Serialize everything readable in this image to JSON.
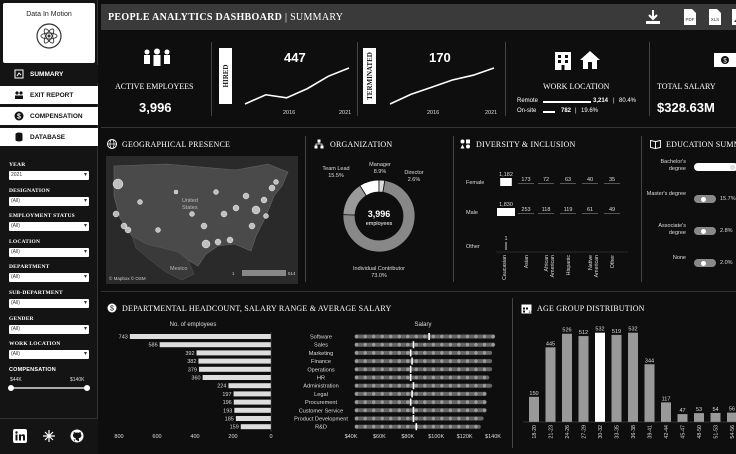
{
  "app": {
    "logo_text": "Data In Motion",
    "title": "PEOPLE ANALYTICS DASHBOARD",
    "subtitle": "SUMMARY",
    "top_icons": [
      "download-icon",
      "pdf-icon",
      "xls-icon",
      "image-icon"
    ]
  },
  "nav": [
    {
      "label": "SUMMARY",
      "icon": "grid-icon"
    },
    {
      "label": "EXIT REPORT",
      "icon": "people-icon"
    },
    {
      "label": "COMPENSATION",
      "icon": "dollar-icon"
    },
    {
      "label": "DATABASE",
      "icon": "database-icon"
    }
  ],
  "filters": [
    {
      "label": "YEAR",
      "value": "2021"
    },
    {
      "label": "DESIGNATION",
      "value": "(All)"
    },
    {
      "label": "EMPLOYMENT STATUS",
      "value": "(All)"
    },
    {
      "label": "LOCATION",
      "value": "(All)"
    },
    {
      "label": "DEPARTMENT",
      "value": "(All)"
    },
    {
      "label": "SUB-DEPARTMENT",
      "value": "(All)"
    },
    {
      "label": "GENDER",
      "value": "(All)"
    },
    {
      "label": "WORK LOCATION",
      "value": "(All)"
    }
  ],
  "compensation": {
    "label": "COMPENSATION",
    "min": "$44K",
    "max": "$140K"
  },
  "footer_icons": [
    "linkedin-icon",
    "tableau-icon",
    "github-icon"
  ],
  "kpis": {
    "active": {
      "label": "ACTIVE EMPLOYEES",
      "value": "3,996"
    },
    "hired": {
      "label": "HIRED",
      "value": "447",
      "x_start": "2016",
      "x_end": "2021"
    },
    "terminated": {
      "label": "TERMINATED",
      "value": "170",
      "x_start": "2016",
      "x_end": "2021"
    },
    "work_location": {
      "label": "WORK LOCATION",
      "remote_label": "Remote",
      "remote_value": "3,214",
      "remote_pct": "80.4%",
      "remote_frac": 0.804,
      "onsite_label": "On-site",
      "onsite_value": "782",
      "onsite_pct": "19.6%",
      "onsite_frac": 0.196
    },
    "salary": {
      "label": "TOTAL SALARY",
      "value": "$328.63M"
    }
  },
  "geo": {
    "title": "GEOGRAPHICAL PRESENCE",
    "united": "United",
    "states": "States",
    "mexico": "Mexico",
    "credit": "© Mapbox © OSM",
    "range_min": "1",
    "range_max": "514"
  },
  "org": {
    "title": "ORGANIZATION",
    "center_value": "3,996",
    "center_label": "employees",
    "segments": [
      {
        "name": "Team Lead",
        "pct": "15.5%",
        "value": 15.5
      },
      {
        "name": "Manager",
        "pct": "8.9%",
        "value": 8.9
      },
      {
        "name": "Director",
        "pct": "2.6%",
        "value": 2.6
      },
      {
        "name": "Individual Contributor",
        "pct": "73.0%",
        "value": 73.0
      }
    ]
  },
  "diversity": {
    "title": "DIVERSITY & INCLUSION",
    "rows": [
      "Female",
      "Male",
      "Other"
    ],
    "columns": [
      "Caucasian",
      "Asian",
      "African American",
      "Hispanic",
      "Native American",
      "Other"
    ],
    "values": [
      [
        1182,
        173,
        72,
        63,
        40,
        35
      ],
      [
        1830,
        253,
        118,
        119,
        61,
        49
      ],
      [
        1,
        null,
        null,
        null,
        null,
        null
      ]
    ]
  },
  "education": {
    "title": "EDUCATION SUMMARY",
    "rows": [
      {
        "label": "Bachelor's degree",
        "pct": ""
      },
      {
        "label": "Master's degree",
        "pct": "15.7%"
      },
      {
        "label": "Associate's degree",
        "pct": "2.8%"
      },
      {
        "label": "None",
        "pct": "2.0%"
      }
    ]
  },
  "dept": {
    "title": "DEPARTMENTAL HEADCOUNT, SALARY RANGE & AVERAGE SALARY",
    "emp_header": "No. of employees",
    "salary_header": "Salary",
    "emp_ticks": [
      "800",
      "600",
      "400",
      "200",
      "0"
    ],
    "salary_ticks": [
      "$40K",
      "$60K",
      "$80K",
      "$100K",
      "$120K",
      "$140K"
    ]
  },
  "age": {
    "title": "AGE GROUP DISTRIBUTION"
  },
  "chart_data": [
    {
      "type": "bar",
      "orientation": "horizontal",
      "categories": [
        "Software",
        "Sales",
        "Marketing",
        "Finance",
        "Operations",
        "HR",
        "Administration",
        "Legal",
        "Procurement",
        "Customer Service",
        "Product Development",
        "R&D"
      ],
      "values": [
        743,
        586,
        392,
        382,
        379,
        360,
        224,
        197,
        196,
        193,
        185,
        159
      ],
      "xlim": [
        800,
        0
      ],
      "title": "No. of employees"
    },
    {
      "type": "scatter",
      "categories": [
        "Software",
        "Sales",
        "Marketing",
        "Finance",
        "Operations",
        "HR",
        "Administration",
        "Legal",
        "Procurement",
        "Customer Service",
        "Product Development",
        "R&D"
      ],
      "avg_salary_k": [
        95,
        84,
        82,
        83,
        82,
        82,
        84,
        83,
        82,
        84,
        84,
        86
      ],
      "range_k": [
        [
          44,
          140
        ],
        [
          44,
          140
        ],
        [
          44,
          138
        ],
        [
          44,
          138
        ],
        [
          44,
          138
        ],
        [
          44,
          136
        ],
        [
          44,
          138
        ],
        [
          44,
          134
        ],
        [
          44,
          134
        ],
        [
          44,
          134
        ],
        [
          44,
          132
        ],
        [
          44,
          130
        ]
      ],
      "xlim": [
        40,
        140
      ],
      "title": "Salary"
    },
    {
      "type": "bar",
      "categories": [
        "18-20",
        "21-23",
        "24-26",
        "27-29",
        "30-32",
        "33-35",
        "36-38",
        "39-41",
        "42-44",
        "45-47",
        "48-50",
        "51-53",
        "54-56"
      ],
      "values": [
        150,
        445,
        526,
        512,
        532,
        519,
        532,
        344,
        117,
        47,
        53,
        54,
        56
      ],
      "highlight_index": 4
    },
    {
      "type": "line",
      "title": "Hired",
      "x": [
        "2016",
        "2017",
        "2018",
        "2019",
        "2020",
        "2021"
      ],
      "values": [
        330,
        360,
        350,
        380,
        420,
        447
      ]
    },
    {
      "type": "line",
      "title": "Terminated",
      "x": [
        "2016",
        "2017",
        "2018",
        "2019",
        "2020",
        "2021"
      ],
      "values": [
        20,
        60,
        90,
        120,
        140,
        170
      ]
    }
  ]
}
